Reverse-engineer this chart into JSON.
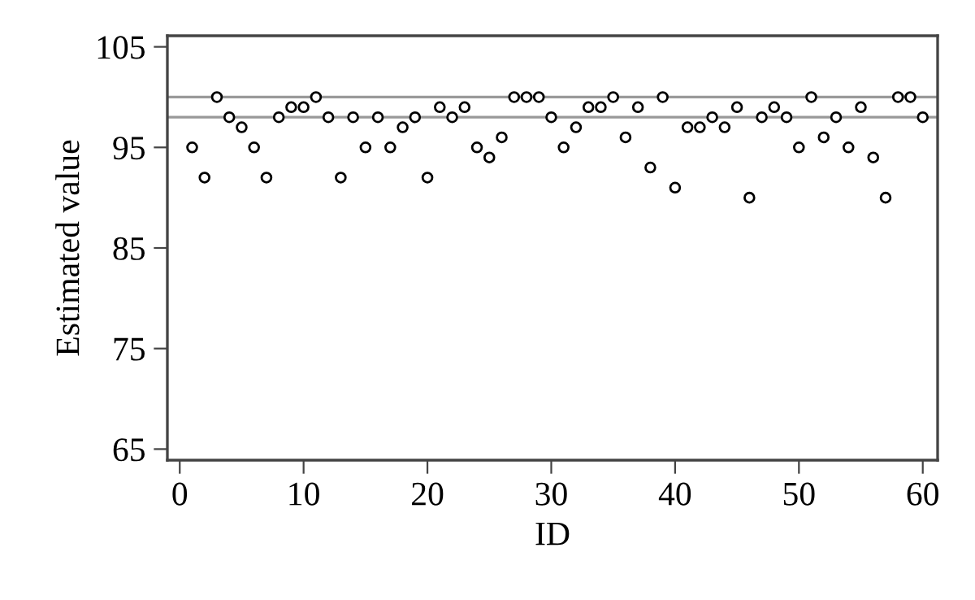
{
  "chart_data": {
    "type": "scatter",
    "xlabel": "ID",
    "ylabel": "Estimated value",
    "x": [
      1,
      2,
      3,
      4,
      5,
      6,
      7,
      8,
      9,
      10,
      11,
      12,
      13,
      14,
      15,
      16,
      17,
      18,
      19,
      20,
      21,
      22,
      23,
      24,
      25,
      26,
      27,
      28,
      29,
      30,
      31,
      32,
      33,
      34,
      35,
      36,
      37,
      38,
      39,
      40,
      41,
      42,
      43,
      44,
      45,
      46,
      47,
      48,
      49,
      50,
      51,
      52,
      53,
      54,
      55,
      56,
      57,
      58,
      59,
      60
    ],
    "values": [
      95,
      92,
      100,
      98,
      97,
      95,
      92,
      98,
      99,
      99,
      100,
      98,
      92,
      98,
      95,
      98,
      95,
      97,
      98,
      92,
      99,
      98,
      99,
      95,
      94,
      96,
      100,
      100,
      100,
      98,
      95,
      97,
      99,
      99,
      100,
      96,
      99,
      93,
      100,
      91,
      97,
      97,
      98,
      97,
      99,
      90,
      98,
      99,
      98,
      95,
      100,
      96,
      98,
      95,
      99,
      94,
      90,
      100,
      100,
      98
    ],
    "color": "#000000",
    "marker": "circle",
    "xlim": [
      -1,
      61.2
    ],
    "ylim": [
      63.9,
      106.1
    ],
    "xticks": [
      0,
      10,
      20,
      30,
      40,
      50,
      60
    ],
    "yticks": [
      65,
      75,
      85,
      95,
      105
    ],
    "ref_lines": [
      {
        "axis": "y",
        "value": 100,
        "color": "#999999"
      },
      {
        "axis": "y",
        "value": 98,
        "color": "#999999"
      }
    ],
    "grid": false,
    "legend": false
  }
}
